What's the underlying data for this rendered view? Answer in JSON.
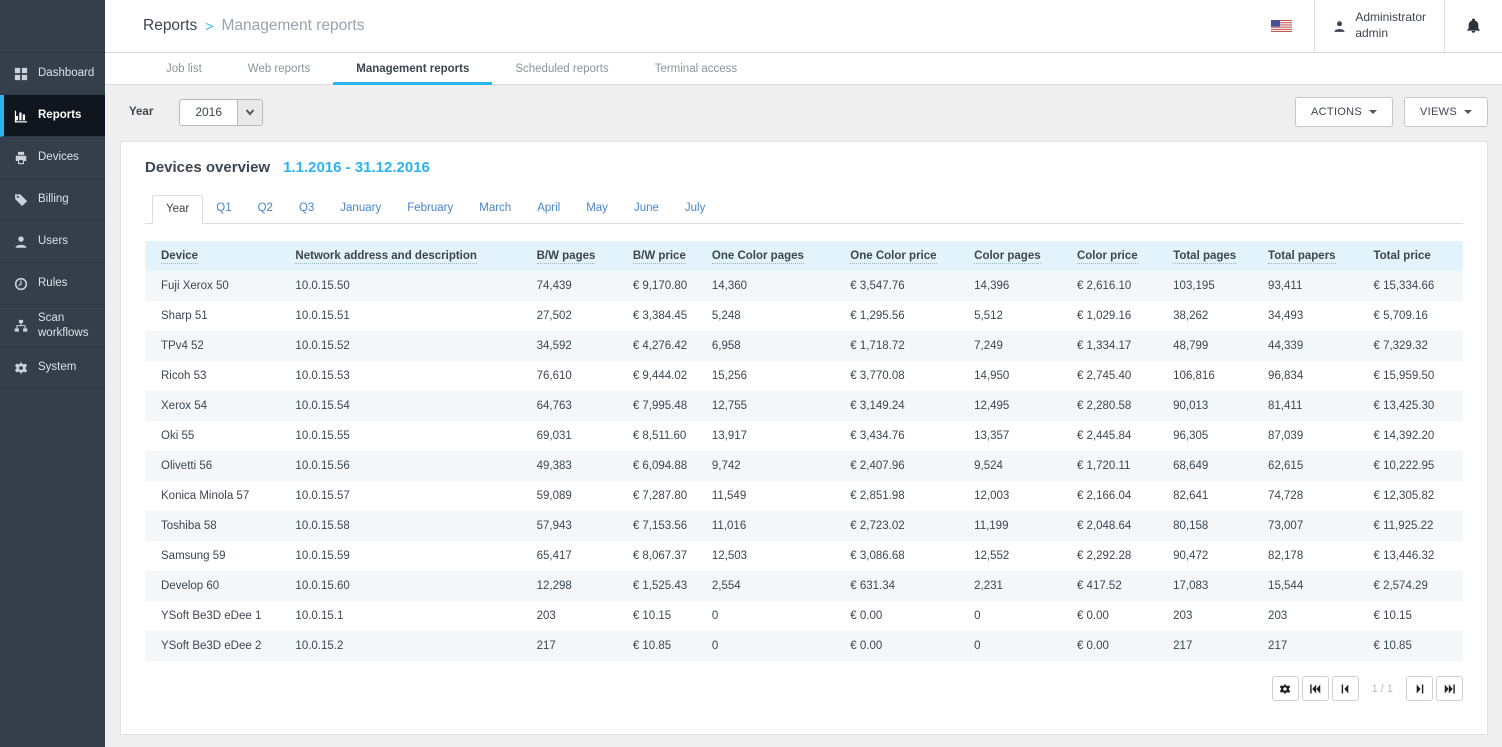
{
  "header": {
    "breadcrumb": {
      "section": "Reports",
      "separator": ">",
      "page": "Management reports"
    },
    "user": {
      "name": "Administrator",
      "role": "admin"
    },
    "language_flag": "us-flag-icon"
  },
  "sidebar": {
    "items": [
      {
        "label": "Dashboard",
        "icon": "dashboard-icon",
        "active": false
      },
      {
        "label": "Reports",
        "icon": "reports-icon",
        "active": true
      },
      {
        "label": "Devices",
        "icon": "devices-icon",
        "active": false
      },
      {
        "label": "Billing",
        "icon": "billing-icon",
        "active": false
      },
      {
        "label": "Users",
        "icon": "users-icon",
        "active": false
      },
      {
        "label": "Rules",
        "icon": "rules-icon",
        "active": false
      },
      {
        "label": "Scan workflows",
        "icon": "scan-workflows-icon",
        "active": false
      },
      {
        "label": "System",
        "icon": "system-icon",
        "active": false
      }
    ]
  },
  "tabs": [
    {
      "label": "Job list",
      "active": false
    },
    {
      "label": "Web reports",
      "active": false
    },
    {
      "label": "Management reports",
      "active": true
    },
    {
      "label": "Scheduled reports",
      "active": false
    },
    {
      "label": "Terminal access",
      "active": false
    }
  ],
  "filters": {
    "year_label": "Year",
    "year_value": "2016"
  },
  "toolbar": {
    "actions_label": "ACTIONS",
    "views_label": "VIEWS"
  },
  "report": {
    "title": "Devices overview",
    "period": "1.1.2016 - 31.12.2016",
    "period_tabs": [
      {
        "label": "Year",
        "active": true
      },
      {
        "label": "Q1",
        "active": false
      },
      {
        "label": "Q2",
        "active": false
      },
      {
        "label": "Q3",
        "active": false
      },
      {
        "label": "January",
        "active": false
      },
      {
        "label": "February",
        "active": false
      },
      {
        "label": "March",
        "active": false
      },
      {
        "label": "April",
        "active": false
      },
      {
        "label": "May",
        "active": false
      },
      {
        "label": "June",
        "active": false
      },
      {
        "label": "July",
        "active": false
      }
    ],
    "table": {
      "columns": [
        {
          "label": "Device",
          "sortable": true
        },
        {
          "label": "Network address and description",
          "sortable": true
        },
        {
          "label": "B/W pages",
          "sortable": true
        },
        {
          "label": "B/W price",
          "sortable": true
        },
        {
          "label": "One Color pages",
          "sortable": true
        },
        {
          "label": "One Color price",
          "sortable": true
        },
        {
          "label": "Color pages",
          "sortable": true
        },
        {
          "label": "Color price",
          "sortable": true
        },
        {
          "label": "Total pages",
          "sortable": true
        },
        {
          "label": "Total papers",
          "sortable": true
        },
        {
          "label": "Total price",
          "sortable": false
        }
      ],
      "rows": [
        [
          "Fuji Xerox 50",
          "10.0.15.50",
          "74,439",
          "€ 9,170.80",
          "14,360",
          "€ 3,547.76",
          "14,396",
          "€ 2,616.10",
          "103,195",
          "93,411",
          "€ 15,334.66"
        ],
        [
          "Sharp 51",
          "10.0.15.51",
          "27,502",
          "€ 3,384.45",
          "5,248",
          "€ 1,295.56",
          "5,512",
          "€ 1,029.16",
          "38,262",
          "34,493",
          "€ 5,709.16"
        ],
        [
          "TPv4 52",
          "10.0.15.52",
          "34,592",
          "€ 4,276.42",
          "6,958",
          "€ 1,718.72",
          "7,249",
          "€ 1,334.17",
          "48,799",
          "44,339",
          "€ 7,329.32"
        ],
        [
          "Ricoh 53",
          "10.0.15.53",
          "76,610",
          "€ 9,444.02",
          "15,256",
          "€ 3,770.08",
          "14,950",
          "€ 2,745.40",
          "106,816",
          "96,834",
          "€ 15,959.50"
        ],
        [
          "Xerox 54",
          "10.0.15.54",
          "64,763",
          "€ 7,995.48",
          "12,755",
          "€ 3,149.24",
          "12,495",
          "€ 2,280.58",
          "90,013",
          "81,411",
          "€ 13,425.30"
        ],
        [
          "Oki 55",
          "10.0.15.55",
          "69,031",
          "€ 8,511.60",
          "13,917",
          "€ 3,434.76",
          "13,357",
          "€ 2,445.84",
          "96,305",
          "87,039",
          "€ 14,392.20"
        ],
        [
          "Olivetti 56",
          "10.0.15.56",
          "49,383",
          "€ 6,094.88",
          "9,742",
          "€ 2,407.96",
          "9,524",
          "€ 1,720.11",
          "68,649",
          "62,615",
          "€ 10,222.95"
        ],
        [
          "Konica Minola 57",
          "10.0.15.57",
          "59,089",
          "€ 7,287.80",
          "11,549",
          "€ 2,851.98",
          "12,003",
          "€ 2,166.04",
          "82,641",
          "74,728",
          "€ 12,305.82"
        ],
        [
          "Toshiba 58",
          "10.0.15.58",
          "57,943",
          "€ 7,153.56",
          "11,016",
          "€ 2,723.02",
          "11,199",
          "€ 2,048.64",
          "80,158",
          "73,007",
          "€ 11,925.22"
        ],
        [
          "Samsung 59",
          "10.0.15.59",
          "65,417",
          "€ 8,067.37",
          "12,503",
          "€ 3,086.68",
          "12,552",
          "€ 2,292.28",
          "90,472",
          "82,178",
          "€ 13,446.32"
        ],
        [
          "Develop 60",
          "10.0.15.60",
          "12,298",
          "€ 1,525.43",
          "2,554",
          "€ 631.34",
          "2,231",
          "€ 417.52",
          "17,083",
          "15,544",
          "€ 2,574.29"
        ],
        [
          "YSoft Be3D eDee 1",
          "10.0.15.1",
          "203",
          "€ 10.15",
          "0",
          "€ 0.00",
          "0",
          "€ 0.00",
          "203",
          "203",
          "€ 10.15"
        ],
        [
          "YSoft Be3D eDee 2",
          "10.0.15.2",
          "217",
          "€ 10.85",
          "0",
          "€ 0.00",
          "0",
          "€ 0.00",
          "217",
          "217",
          "€ 10.85"
        ]
      ]
    },
    "pagination": {
      "page_label": "1 / 1"
    }
  },
  "colors": {
    "accent_cyan": "#2ab4f0",
    "sidebar_bg": "#353f4c",
    "sidebar_active_bg": "#10161d",
    "table_header_bg": "#e2f3fb",
    "row_alt_bg": "#f4f7f9",
    "link_blue": "#4a86c8"
  }
}
